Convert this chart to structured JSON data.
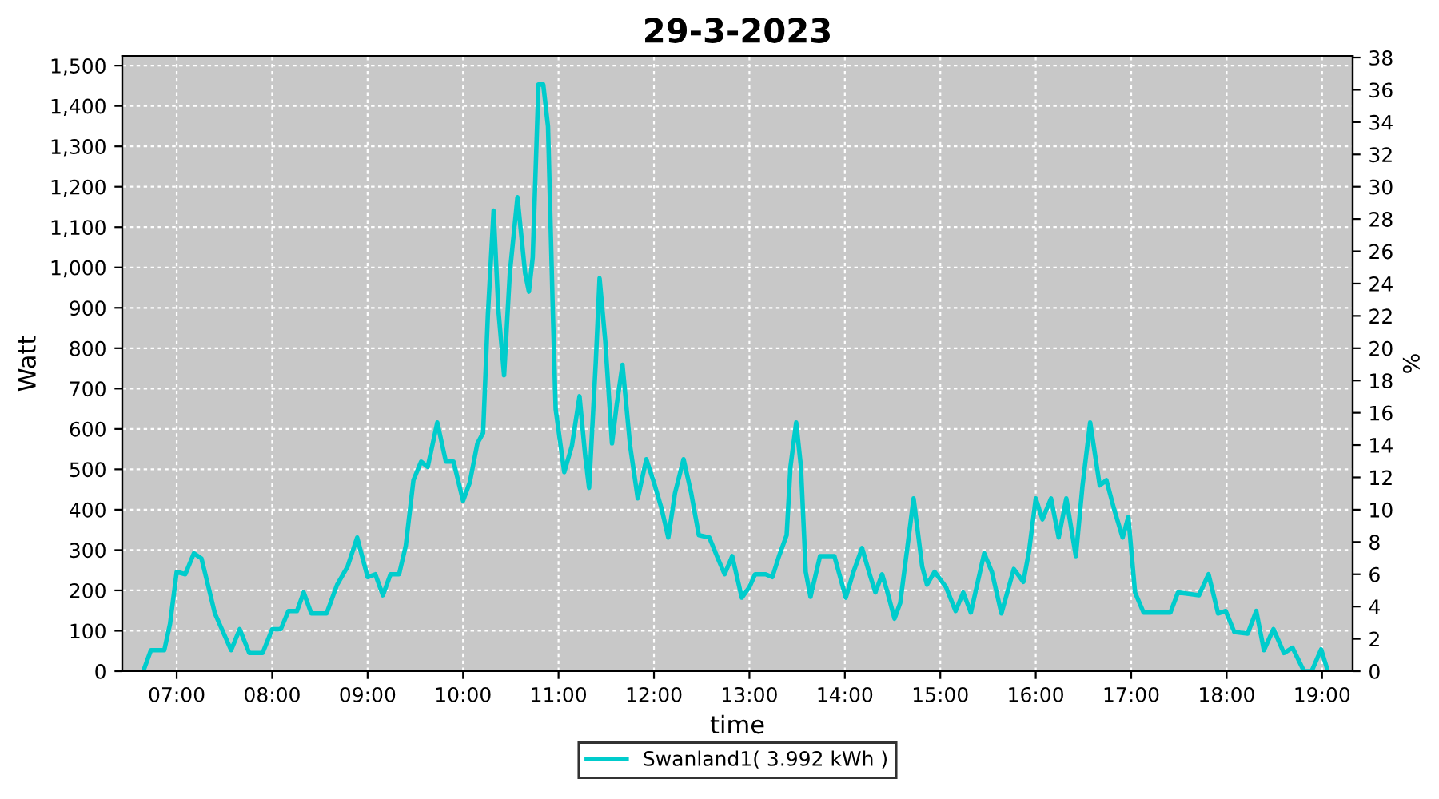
{
  "chart_data": {
    "type": "line",
    "title": "29-3-2023",
    "xlabel": "time",
    "ylabel": "Watt",
    "y2label": "%",
    "xlim": [
      6.43,
      19.32
    ],
    "xticks": [
      {
        "value": 7,
        "label": "07:00"
      },
      {
        "value": 8,
        "label": "08:00"
      },
      {
        "value": 9,
        "label": "09:00"
      },
      {
        "value": 10,
        "label": "10:00"
      },
      {
        "value": 11,
        "label": "11:00"
      },
      {
        "value": 12,
        "label": "12:00"
      },
      {
        "value": 13,
        "label": "13:00"
      },
      {
        "value": 14,
        "label": "14:00"
      },
      {
        "value": 15,
        "label": "15:00"
      },
      {
        "value": 16,
        "label": "16:00"
      },
      {
        "value": 17,
        "label": "17:00"
      },
      {
        "value": 18,
        "label": "18:00"
      },
      {
        "value": 19,
        "label": "19:00"
      }
    ],
    "ylim": [
      0,
      1524
    ],
    "yticks": [
      0,
      100,
      200,
      300,
      400,
      500,
      600,
      700,
      800,
      900,
      {
        "value": 1000,
        "label": "1,000"
      },
      {
        "value": 1100,
        "label": "1,100"
      },
      {
        "value": 1200,
        "label": "1,200"
      },
      {
        "value": 1300,
        "label": "1,300"
      },
      {
        "value": 1400,
        "label": "1,400"
      },
      {
        "value": 1500,
        "label": "1,500"
      }
    ],
    "y2lim": [
      0,
      38.1
    ],
    "y2ticks": [
      0,
      2,
      4,
      6,
      8,
      10,
      12,
      14,
      16,
      18,
      20,
      22,
      24,
      26,
      28,
      30,
      32,
      34,
      36,
      38
    ],
    "grid": true,
    "legend": "bottom",
    "line_style": "solid",
    "series": [
      {
        "name": "Swanland1( 3.992 kWh )",
        "color": "#00cccc",
        "x": [
          6.65,
          6.73,
          6.87,
          6.93,
          7.0,
          7.09,
          7.18,
          7.26,
          7.4,
          7.57,
          7.66,
          7.76,
          7.9,
          8.0,
          8.09,
          8.17,
          8.26,
          8.33,
          8.41,
          8.57,
          8.68,
          8.79,
          8.89,
          9.0,
          9.08,
          9.16,
          9.24,
          9.33,
          9.4,
          9.48,
          9.56,
          9.63,
          9.73,
          9.82,
          9.9,
          10.0,
          10.07,
          10.15,
          10.21,
          10.26,
          10.32,
          10.37,
          10.43,
          10.49,
          10.57,
          10.65,
          10.69,
          10.73,
          10.79,
          10.84,
          10.89,
          10.94,
          10.97,
          11.06,
          11.14,
          11.22,
          11.28,
          11.32,
          11.39,
          11.43,
          11.49,
          11.56,
          11.61,
          11.67,
          11.75,
          11.83,
          11.92,
          12.0,
          12.08,
          12.15,
          12.22,
          12.31,
          12.39,
          12.47,
          12.58,
          12.67,
          12.74,
          12.82,
          12.92,
          13.0,
          13.06,
          13.17,
          13.24,
          13.31,
          13.39,
          13.43,
          13.49,
          13.54,
          13.59,
          13.64,
          13.74,
          13.89,
          14.01,
          14.09,
          14.18,
          14.26,
          14.32,
          14.39,
          14.44,
          14.52,
          14.58,
          14.65,
          14.72,
          14.81,
          14.86,
          14.94,
          15.06,
          15.16,
          15.24,
          15.32,
          15.46,
          15.54,
          15.64,
          15.77,
          15.87,
          15.93,
          16.0,
          16.07,
          16.16,
          16.24,
          16.32,
          16.42,
          16.49,
          16.57,
          16.67,
          16.74,
          16.82,
          16.91,
          16.97,
          17.04,
          17.13,
          17.41,
          17.49,
          17.71,
          17.81,
          17.91,
          17.99,
          18.08,
          18.22,
          18.31,
          18.39,
          18.49,
          18.6,
          18.69,
          18.81,
          18.89,
          18.99,
          19.06
        ],
        "values": [
          0,
          52,
          52,
          117,
          246,
          240,
          292,
          279,
          143,
          52,
          104,
          45,
          45,
          104,
          104,
          149,
          149,
          195,
          143,
          143,
          214,
          259,
          331,
          233,
          240,
          188,
          240,
          240,
          311,
          473,
          519,
          506,
          616,
          519,
          519,
          422,
          467,
          564,
          590,
          882,
          1141,
          895,
          733,
          986,
          1174,
          986,
          940,
          1025,
          1453,
          1453,
          1349,
          895,
          649,
          493,
          558,
          681,
          532,
          454,
          765,
          973,
          817,
          564,
          661,
          759,
          558,
          428,
          525,
          467,
          402,
          331,
          441,
          525,
          441,
          337,
          331,
          279,
          240,
          285,
          182,
          208,
          240,
          240,
          233,
          285,
          337,
          506,
          616,
          506,
          246,
          184,
          285,
          285,
          182,
          246,
          305,
          240,
          195,
          240,
          201,
          130,
          169,
          298,
          428,
          259,
          214,
          246,
          208,
          149,
          195,
          145,
          292,
          246,
          143,
          253,
          221,
          298,
          428,
          376,
          428,
          331,
          428,
          285,
          460,
          616,
          460,
          473,
          402,
          331,
          382,
          195,
          145,
          145,
          195,
          188,
          240,
          143,
          149,
          97,
          93,
          149,
          52,
          104,
          45,
          58,
          0,
          0,
          54,
          0
        ]
      }
    ]
  }
}
